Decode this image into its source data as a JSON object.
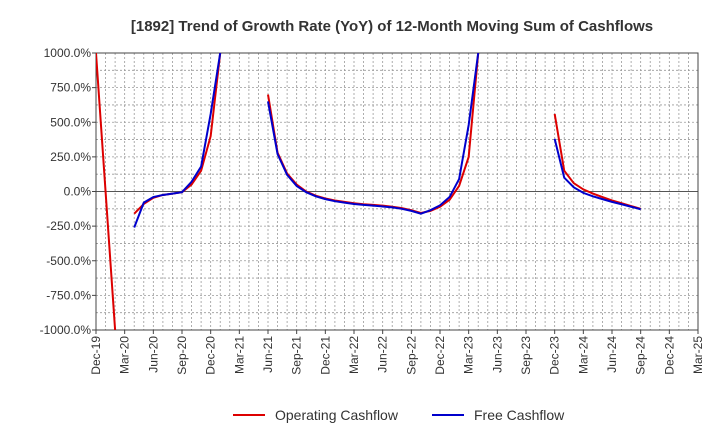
{
  "chart_data": {
    "type": "line",
    "title": "[1892]  Trend of Growth Rate (YoY) of 12-Month Moving Sum of Cashflows",
    "xlabel": "",
    "ylabel": "",
    "ylim": [
      -1000,
      1000
    ],
    "yticks": [
      1000,
      750,
      500,
      250,
      0,
      -250,
      -500,
      -750,
      -1000
    ],
    "ytick_labels": [
      "1000.0%",
      "750.0%",
      "500.0%",
      "250.0%",
      "0.0%",
      "-250.0%",
      "-500.0%",
      "-750.0%",
      "-1000.0%"
    ],
    "xlim": [
      "2019-12",
      "2025-03"
    ],
    "xtick_labels": [
      "Dec-19",
      "Mar-20",
      "Jun-20",
      "Sep-20",
      "Dec-20",
      "Mar-21",
      "Jun-21",
      "Sep-21",
      "Dec-21",
      "Mar-22",
      "Jun-22",
      "Sep-22",
      "Dec-22",
      "Mar-23",
      "Jun-23",
      "Sep-23",
      "Dec-23",
      "Mar-24",
      "Jun-24",
      "Sep-24",
      "Dec-24",
      "Mar-25"
    ],
    "grid": true,
    "legend_position": "bottom-center",
    "series": [
      {
        "name": "Operating Cashflow",
        "color": "#dd0000",
        "points": [
          [
            "2019-12",
            1000
          ],
          [
            "2020-01",
            0
          ],
          [
            "2020-02",
            -1000
          ],
          [
            "2020-03",
            null
          ],
          [
            "2020-04",
            -160
          ],
          [
            "2020-05",
            -90
          ],
          [
            "2020-06",
            -45
          ],
          [
            "2020-07",
            -25
          ],
          [
            "2020-08",
            -15
          ],
          [
            "2020-09",
            -5
          ],
          [
            "2020-10",
            50
          ],
          [
            "2020-11",
            150
          ],
          [
            "2020-12",
            400
          ],
          [
            "2021-01",
            1000
          ],
          [
            "2021-02",
            null
          ],
          [
            "2021-03",
            null
          ],
          [
            "2021-04",
            null
          ],
          [
            "2021-05",
            null
          ],
          [
            "2021-06",
            700
          ],
          [
            "2021-07",
            280
          ],
          [
            "2021-08",
            130
          ],
          [
            "2021-09",
            50
          ],
          [
            "2021-10",
            0
          ],
          [
            "2021-11",
            -30
          ],
          [
            "2021-12",
            -50
          ],
          [
            "2022-01",
            -65
          ],
          [
            "2022-02",
            -75
          ],
          [
            "2022-03",
            -85
          ],
          [
            "2022-04",
            -92
          ],
          [
            "2022-05",
            -97
          ],
          [
            "2022-06",
            -102
          ],
          [
            "2022-07",
            -110
          ],
          [
            "2022-08",
            -120
          ],
          [
            "2022-09",
            -135
          ],
          [
            "2022-10",
            -155
          ],
          [
            "2022-11",
            -140
          ],
          [
            "2022-12",
            -110
          ],
          [
            "2023-01",
            -60
          ],
          [
            "2023-02",
            40
          ],
          [
            "2023-03",
            250
          ],
          [
            "2023-04",
            1000
          ],
          [
            "2023-05",
            null
          ],
          [
            "2023-06",
            null
          ],
          [
            "2023-07",
            null
          ],
          [
            "2023-08",
            null
          ],
          [
            "2023-09",
            null
          ],
          [
            "2023-10",
            null
          ],
          [
            "2023-11",
            null
          ],
          [
            "2023-12",
            560
          ],
          [
            "2024-01",
            150
          ],
          [
            "2024-02",
            60
          ],
          [
            "2024-03",
            15
          ],
          [
            "2024-04",
            -15
          ],
          [
            "2024-05",
            -40
          ],
          [
            "2024-06",
            -65
          ],
          [
            "2024-07",
            -85
          ],
          [
            "2024-08",
            -105
          ],
          [
            "2024-09",
            -125
          ]
        ]
      },
      {
        "name": "Free Cashflow",
        "color": "#0000cc",
        "points": [
          [
            "2019-12",
            null
          ],
          [
            "2020-01",
            null
          ],
          [
            "2020-02",
            null
          ],
          [
            "2020-03",
            null
          ],
          [
            "2020-04",
            -260
          ],
          [
            "2020-05",
            -80
          ],
          [
            "2020-06",
            -40
          ],
          [
            "2020-07",
            -25
          ],
          [
            "2020-08",
            -15
          ],
          [
            "2020-09",
            -5
          ],
          [
            "2020-10",
            70
          ],
          [
            "2020-11",
            180
          ],
          [
            "2020-12",
            560
          ],
          [
            "2021-01",
            1000
          ],
          [
            "2021-02",
            null
          ],
          [
            "2021-03",
            null
          ],
          [
            "2021-04",
            null
          ],
          [
            "2021-05",
            null
          ],
          [
            "2021-06",
            650
          ],
          [
            "2021-07",
            270
          ],
          [
            "2021-08",
            120
          ],
          [
            "2021-09",
            40
          ],
          [
            "2021-10",
            -5
          ],
          [
            "2021-11",
            -35
          ],
          [
            "2021-12",
            -55
          ],
          [
            "2022-01",
            -70
          ],
          [
            "2022-02",
            -80
          ],
          [
            "2022-03",
            -90
          ],
          [
            "2022-04",
            -97
          ],
          [
            "2022-05",
            -102
          ],
          [
            "2022-06",
            -108
          ],
          [
            "2022-07",
            -115
          ],
          [
            "2022-08",
            -125
          ],
          [
            "2022-09",
            -140
          ],
          [
            "2022-10",
            -160
          ],
          [
            "2022-11",
            -135
          ],
          [
            "2022-12",
            -100
          ],
          [
            "2023-01",
            -40
          ],
          [
            "2023-02",
            90
          ],
          [
            "2023-03",
            480
          ],
          [
            "2023-04",
            1000
          ],
          [
            "2023-05",
            null
          ],
          [
            "2023-06",
            null
          ],
          [
            "2023-07",
            null
          ],
          [
            "2023-08",
            null
          ],
          [
            "2023-09",
            null
          ],
          [
            "2023-10",
            null
          ],
          [
            "2023-11",
            null
          ],
          [
            "2023-12",
            380
          ],
          [
            "2024-01",
            100
          ],
          [
            "2024-02",
            30
          ],
          [
            "2024-03",
            -10
          ],
          [
            "2024-04",
            -35
          ],
          [
            "2024-05",
            -55
          ],
          [
            "2024-06",
            -75
          ],
          [
            "2024-07",
            -92
          ],
          [
            "2024-08",
            -110
          ],
          [
            "2024-09",
            -128
          ]
        ]
      }
    ]
  }
}
